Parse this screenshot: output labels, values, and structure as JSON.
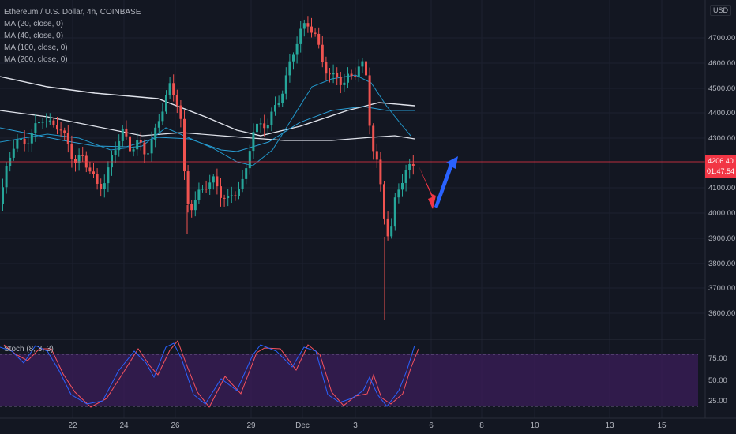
{
  "legend": {
    "symbol": "Ethereum / U.S. Dollar, 4h, COINBASE",
    "ma1": "MA (20, close, 0)",
    "ma2": "MA (40, close, 0)",
    "ma3": "MA (100, close, 0)",
    "ma4": "MA (200, close, 0)"
  },
  "axis": {
    "currency": "USD",
    "price_ticks": [
      "4700.00",
      "4600.00",
      "4500.00",
      "4400.00",
      "4300.00",
      "4100.00",
      "4000.00",
      "3900.00",
      "3800.00",
      "3700.00",
      "3600.00"
    ],
    "date_ticks": [
      "22",
      "24",
      "26",
      "29",
      "Dec",
      "3",
      "6",
      "8",
      "10",
      "13",
      "15"
    ],
    "stoch_ticks": [
      "75.00",
      "50.00",
      "25.00"
    ]
  },
  "last_price": {
    "value": "4206.40",
    "countdown": "01:47:54"
  },
  "stoch_label": "Stoch (8, 3, 3)",
  "colors": {
    "bull": "#26a69a",
    "bear": "#ef5350",
    "ma_fast": "#2196c8",
    "ma_slow": "#2a9fd6",
    "ma_long": "#e0e3eb",
    "arrow_down": "#f23645",
    "arrow_up": "#2962ff",
    "stoch_band": "#3b1e5a"
  }
}
